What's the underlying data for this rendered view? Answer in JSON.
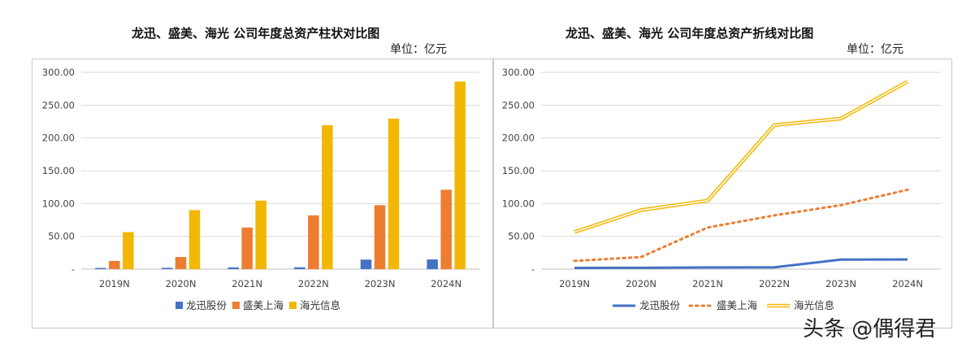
{
  "chart_data": [
    {
      "type": "bar",
      "title": "龙迅、盛美、海光 公司年度总资产柱状对比图",
      "unit_label": "单位：亿元",
      "categories": [
        "2019N",
        "2020N",
        "2021N",
        "2022N",
        "2023N",
        "2024N"
      ],
      "ylim": [
        0,
        300
      ],
      "yticks": [
        "-",
        "50.00",
        "100.00",
        "150.00",
        "200.00",
        "250.00",
        "300.00"
      ],
      "grid": true,
      "legend_position": "bottom",
      "series": [
        {
          "name": "龙迅股份",
          "color": "#4472C4",
          "values": [
            1.8,
            2.0,
            2.6,
            2.8,
            14.5,
            14.8
          ]
        },
        {
          "name": "盛美上海",
          "color": "#ED7D31",
          "values": [
            12.5,
            18.5,
            63.5,
            82.0,
            97.5,
            121.0
          ]
        },
        {
          "name": "海光信息",
          "color": "#F2B705",
          "values": [
            56.5,
            90.0,
            104.5,
            219.5,
            229.5,
            286.0
          ]
        }
      ]
    },
    {
      "type": "line",
      "title": "龙迅、盛美、海光 公司年度总资产折线对比图",
      "unit_label": "单位：亿元",
      "categories": [
        "2019N",
        "2020N",
        "2021N",
        "2022N",
        "2023N",
        "2024N"
      ],
      "ylim": [
        0,
        300
      ],
      "yticks": [
        "-",
        "50.00",
        "100.00",
        "150.00",
        "200.00",
        "250.00",
        "300.00"
      ],
      "grid": true,
      "legend_position": "bottom",
      "series": [
        {
          "name": "龙迅股份",
          "color": "#4472C4",
          "style": "solid",
          "values": [
            1.8,
            2.0,
            2.6,
            2.8,
            14.5,
            14.8
          ]
        },
        {
          "name": "盛美上海",
          "color": "#ED7D31",
          "style": "dotted",
          "values": [
            12.5,
            18.5,
            63.5,
            82.0,
            97.5,
            121.0
          ]
        },
        {
          "name": "海光信息",
          "color": "#F2B705",
          "style": "double",
          "values": [
            56.5,
            90.0,
            104.5,
            219.5,
            229.5,
            286.0
          ]
        }
      ]
    }
  ],
  "watermark": "头条 @偶得君"
}
